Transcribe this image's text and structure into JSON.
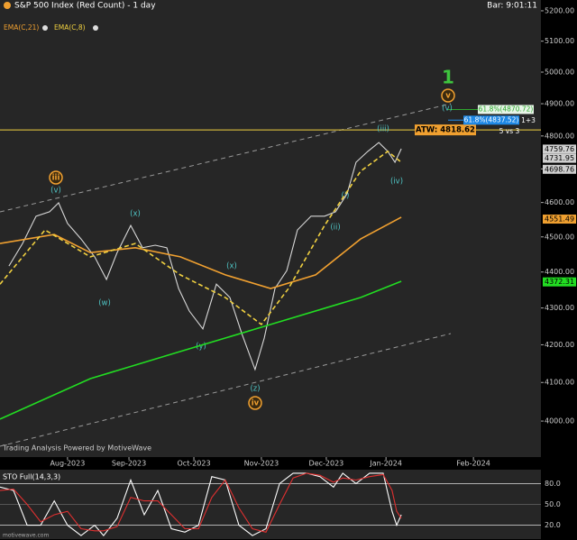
{
  "chart_data": [
    {
      "type": "line",
      "title": "S&P 500 Index (Red Count) - 1 day",
      "bar_time": "Bar: 9:01:11",
      "watermark": "Trading Analysis Powered by MotiveWave",
      "log_scale": true,
      "xlim": [
        0,
        187.5
      ],
      "ylim": [
        3909,
        5236
      ],
      "yticks": [
        {
          "value": 4000,
          "label": "4000.00"
        },
        {
          "value": 4100,
          "label": "4100.00"
        },
        {
          "value": 4200,
          "label": "4200.00"
        },
        {
          "value": 4300,
          "label": "4300.00"
        },
        {
          "value": 4400,
          "label": "4400.00"
        },
        {
          "value": 4500,
          "label": "4500.00"
        },
        {
          "value": 4600,
          "label": "4600.00"
        },
        {
          "value": 4700,
          "label": "4700.00"
        },
        {
          "value": 4800,
          "label": "4800.00"
        },
        {
          "value": 4900,
          "label": "4900.00"
        },
        {
          "value": 5000,
          "label": "5000.00"
        },
        {
          "value": 5100,
          "label": "5100.00"
        },
        {
          "value": 5200,
          "label": "5200.00"
        }
      ],
      "xticks": [
        {
          "value": 23.4,
          "label": "Aug-2023"
        },
        {
          "value": 44.7,
          "label": "Sep-2023"
        },
        {
          "value": 67.2,
          "label": "Oct-2023"
        },
        {
          "value": 90.6,
          "label": "Nov-2023"
        },
        {
          "value": 113.1,
          "label": "Dec-2023"
        },
        {
          "value": 133.8,
          "label": "Jan-2024"
        },
        {
          "value": 164.1,
          "label": "Feb-2024"
        }
      ],
      "series": [
        {
          "color": "#d8d8d8",
          "x": [
            3.1,
            7.8,
            12.5,
            17.2,
            20.3,
            23.4,
            28.1,
            32.8,
            36.9,
            40.6,
            45.3,
            49.4,
            53.8,
            57.8,
            61.9,
            65.6,
            70.3,
            75,
            79.7,
            83.8,
            88.4,
            91.6,
            95.3,
            99.4,
            103.1,
            107.8,
            112.5,
            116.3,
            120.3,
            123.4,
            127.5,
            131.3,
            134.4,
            136.9,
            139.1
          ],
          "values": [
            4417,
            4481,
            4560,
            4573,
            4599,
            4539,
            4494,
            4443,
            4379,
            4455,
            4533,
            4469,
            4476,
            4469,
            4354,
            4292,
            4243,
            4366,
            4329,
            4230,
            4134,
            4218,
            4354,
            4404,
            4520,
            4560,
            4560,
            4573,
            4626,
            4720,
            4753,
            4780,
            4753,
            4720,
            4761
          ]
        },
        {
          "name": "EMA(C,21)",
          "color": "#f0a030",
          "x": [
            0,
            18.8,
            31.3,
            46.9,
            62.5,
            78.1,
            93.8,
            109.4,
            125,
            139.1
          ],
          "values": [
            4481,
            4507,
            4455,
            4469,
            4443,
            4392,
            4354,
            4392,
            4494,
            4557
          ]
        },
        {
          "name": "EMA(C,8)",
          "color": "#f0d040",
          "dashed": true,
          "x": [
            0,
            15.6,
            31.3,
            46.9,
            62.5,
            78.1,
            90.6,
            100,
            112.5,
            125,
            134.4,
            139.1
          ],
          "values": [
            4366,
            4520,
            4443,
            4481,
            4392,
            4329,
            4255,
            4354,
            4533,
            4693,
            4753,
            4720
          ]
        },
        {
          "color": "#22dd22",
          "x": [
            0,
            31.3,
            62.5,
            93.8,
            125,
            139.1
          ],
          "values": [
            4005,
            4110,
            4182,
            4255,
            4329,
            4374
          ]
        }
      ],
      "price_labels": [
        4759.76,
        4731.95,
        4698.76,
        4551.49,
        4372.31
      ],
      "price_label_colors": [
        "#cfcfcf",
        "#cfcfcf",
        "#cfcfcf",
        "#f0a030",
        "#22dd22"
      ],
      "hline": {
        "value": 4818.62,
        "label": "ATW: 4818.62",
        "color": "#f0d040"
      },
      "fib_levels": [
        {
          "value": 4870.72,
          "label": "61.8%(4870.72)",
          "color": "#2ea82e"
        },
        {
          "value": 4837.52,
          "label": "61.8%(4837.52)",
          "color": "#1e88e5"
        }
      ],
      "annotations": [
        "1",
        "v",
        "(v)",
        "(iii)",
        "(iv)",
        "(i)",
        "(ii)",
        "iii",
        "(v)",
        "(x)",
        "(w)",
        "(x)",
        "(y)",
        "(z)",
        "iv",
        "1+3",
        "5 vs 3"
      ]
    },
    {
      "type": "line",
      "title": "STO Full(14,3,3)",
      "footer": "motivewave.com",
      "xlim": [
        0,
        187.5
      ],
      "ylim": [
        0,
        100
      ],
      "grid": true,
      "yticks": [
        {
          "value": 80,
          "label": "80.0"
        },
        {
          "value": 50,
          "label": "50.0"
        },
        {
          "value": 20,
          "label": "20.0"
        }
      ],
      "series": [
        {
          "color": "#ffffff",
          "x": [
            0,
            4.7,
            9.4,
            14.1,
            18.8,
            23.4,
            28.1,
            32.8,
            35.9,
            40.6,
            45.3,
            50,
            54.7,
            59.4,
            64.1,
            68.8,
            73.4,
            78.1,
            82.8,
            87.5,
            92.2,
            96.9,
            101.6,
            106.3,
            110.9,
            115.6,
            118.8,
            123.4,
            128.1,
            132.8,
            135.9,
            137.5,
            139.1
          ],
          "values": [
            75,
            70,
            20,
            20,
            55,
            20,
            5,
            20,
            5,
            30,
            85,
            35,
            70,
            15,
            10,
            20,
            90,
            85,
            20,
            5,
            15,
            80,
            95,
            95,
            90,
            75,
            95,
            80,
            95,
            95,
            40,
            20,
            35
          ]
        },
        {
          "color": "#e03030",
          "x": [
            0,
            4.7,
            9.4,
            14.1,
            18.8,
            23.4,
            28.1,
            32.8,
            35.9,
            40.6,
            45.3,
            50,
            54.7,
            59.4,
            64.1,
            68.8,
            73.4,
            78.1,
            82.8,
            87.5,
            92.2,
            96.9,
            101.6,
            106.3,
            110.9,
            115.6,
            118.8,
            123.4,
            128.1,
            132.8,
            135.9,
            137.5,
            139.1
          ],
          "values": [
            70,
            72,
            50,
            25,
            35,
            40,
            15,
            12,
            12,
            18,
            60,
            55,
            55,
            35,
            15,
            15,
            60,
            85,
            45,
            15,
            10,
            50,
            88,
            95,
            92,
            82,
            88,
            85,
            90,
            93,
            70,
            40,
            30
          ]
        }
      ]
    }
  ]
}
